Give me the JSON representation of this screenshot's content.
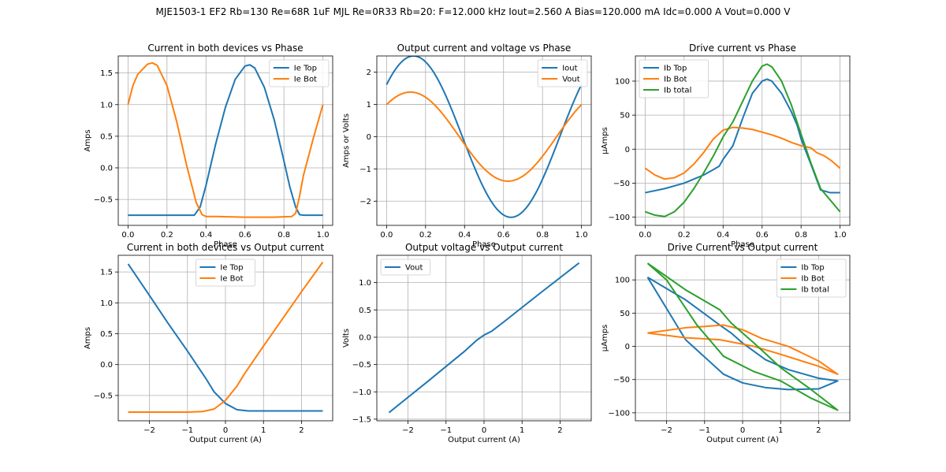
{
  "figure": {
    "suptitle": "MJE1503-1 EF2 Rb=130 Re=68R 1uF MJL Re=0R33 Rb=20: F=12.000 kHz Iout=2.560 A Bias=120.000 mA Idc=0.000 A Vout=0.000 V"
  },
  "colors": {
    "blue": "#1f77b4",
    "orange": "#ff7f0e",
    "green": "#2ca02c",
    "grid": "#b0b0b0"
  },
  "chart_data": [
    {
      "id": "p1",
      "type": "line",
      "title": "Current in both devices vs Phase",
      "xlabel": "Phase",
      "ylabel": "Amps",
      "xlim": [
        -0.05,
        1.05
      ],
      "ylim": [
        -0.91,
        1.77
      ],
      "xticks": [
        0.0,
        0.2,
        0.4,
        0.6,
        0.8,
        1.0
      ],
      "yticks": [
        -0.5,
        0.0,
        0.5,
        1.0,
        1.5
      ],
      "grid": true,
      "legend": "upper right",
      "series": [
        {
          "name": "Ie Top",
          "color": "blue",
          "x": [
            0,
            0.25,
            0.34,
            0.37,
            0.4,
            0.45,
            0.5,
            0.55,
            0.6,
            0.625,
            0.65,
            0.7,
            0.75,
            0.8,
            0.83,
            0.86,
            0.88,
            0.9,
            1.0
          ],
          "y": [
            -0.75,
            -0.75,
            -0.75,
            -0.62,
            -0.28,
            0.38,
            0.96,
            1.4,
            1.61,
            1.63,
            1.58,
            1.27,
            0.76,
            0.11,
            -0.3,
            -0.62,
            -0.74,
            -0.75,
            -0.75
          ]
        },
        {
          "name": "Ie Bot",
          "color": "orange",
          "x": [
            0,
            0.025,
            0.05,
            0.1,
            0.125,
            0.15,
            0.2,
            0.25,
            0.3,
            0.35,
            0.38,
            0.4,
            0.45,
            0.6,
            0.75,
            0.84,
            0.86,
            0.88,
            0.9,
            0.95,
            1.0
          ],
          "y": [
            1.0,
            1.3,
            1.48,
            1.64,
            1.66,
            1.62,
            1.3,
            0.73,
            0.05,
            -0.55,
            -0.74,
            -0.77,
            -0.77,
            -0.78,
            -0.78,
            -0.77,
            -0.72,
            -0.45,
            -0.12,
            0.46,
            1.0
          ]
        }
      ]
    },
    {
      "id": "p2",
      "type": "line",
      "title": "Output current and voltage vs Phase",
      "xlabel": "Phase",
      "ylabel": "Amps or Volts",
      "xlim": [
        -0.05,
        1.05
      ],
      "ylim": [
        -2.75,
        2.5
      ],
      "xticks": [
        0.0,
        0.2,
        0.4,
        0.6,
        0.8,
        1.0
      ],
      "yticks": [
        -2,
        -1,
        0,
        1,
        2
      ],
      "grid": true,
      "legend": "upper right",
      "series": [
        {
          "name": "Iout",
          "color": "blue",
          "fn": "sin",
          "amp": 2.5,
          "offset": 0,
          "shift": 0.7
        },
        {
          "name": "Vout",
          "color": "orange",
          "fn": "sin",
          "amp": 1.38,
          "offset": 0,
          "shift": 0.8
        }
      ]
    },
    {
      "id": "p3",
      "type": "line",
      "title": "Drive current vs Phase",
      "xlabel": "Phase",
      "ylabel": "µAmps",
      "xlim": [
        -0.05,
        1.05
      ],
      "ylim": [
        -112,
        137
      ],
      "xticks": [
        0.0,
        0.2,
        0.4,
        0.6,
        0.8,
        1.0
      ],
      "yticks": [
        -100,
        -50,
        0,
        50,
        100
      ],
      "grid": true,
      "legend": "upper left",
      "series": [
        {
          "name": "Ib Top",
          "color": "blue",
          "x": [
            0,
            0.1,
            0.2,
            0.3,
            0.35,
            0.38,
            0.4,
            0.45,
            0.5,
            0.55,
            0.6,
            0.625,
            0.65,
            0.7,
            0.75,
            0.78,
            0.8,
            0.85,
            0.9,
            0.95,
            1.0
          ],
          "y": [
            -64,
            -58,
            -50,
            -38,
            -30,
            -25,
            -15,
            5,
            45,
            82,
            100,
            103,
            100,
            82,
            55,
            35,
            15,
            -22,
            -60,
            -64,
            -64
          ]
        },
        {
          "name": "Ib Bot",
          "color": "orange",
          "x": [
            0,
            0.05,
            0.1,
            0.15,
            0.2,
            0.25,
            0.3,
            0.35,
            0.4,
            0.45,
            0.5,
            0.55,
            0.6,
            0.65,
            0.7,
            0.75,
            0.8,
            0.85,
            0.88,
            0.92,
            0.96,
            1.0
          ],
          "y": [
            -28,
            -38,
            -44,
            -42,
            -35,
            -22,
            -5,
            15,
            28,
            32,
            31,
            29,
            25,
            21,
            16,
            10,
            5,
            2,
            -5,
            -10,
            -18,
            -28
          ]
        },
        {
          "name": "Ib total",
          "color": "green",
          "x": [
            0,
            0.05,
            0.1,
            0.15,
            0.2,
            0.25,
            0.3,
            0.35,
            0.4,
            0.45,
            0.5,
            0.55,
            0.6,
            0.625,
            0.65,
            0.7,
            0.75,
            0.8,
            0.85,
            0.9,
            0.95,
            1.0
          ],
          "y": [
            -92,
            -97,
            -99,
            -92,
            -78,
            -58,
            -35,
            -10,
            18,
            40,
            70,
            100,
            122,
            125,
            121,
            100,
            65,
            22,
            -20,
            -58,
            -75,
            -92
          ]
        }
      ]
    },
    {
      "id": "p4",
      "type": "line",
      "title": "Current in both devices vs Output current",
      "xlabel": "Output current (A)",
      "ylabel": "Amps",
      "xlim": [
        -2.82,
        2.82
      ],
      "ylim": [
        -0.91,
        1.77
      ],
      "xticks": [
        -2,
        -1,
        0,
        1,
        2
      ],
      "yticks": [
        -0.5,
        0.0,
        0.5,
        1.0,
        1.5
      ],
      "grid": true,
      "legend": "upper center",
      "series": [
        {
          "name": "Ie Top",
          "color": "blue",
          "x": [
            -2.56,
            -2.0,
            -1.5,
            -1.0,
            -0.5,
            -0.3,
            0.0,
            0.3,
            0.6,
            1.0,
            2.0,
            2.56
          ],
          "y": [
            1.63,
            1.12,
            0.66,
            0.22,
            -0.24,
            -0.44,
            -0.63,
            -0.73,
            -0.75,
            -0.75,
            -0.75,
            -0.75
          ]
        },
        {
          "name": "Ie Bot",
          "color": "orange",
          "x": [
            -2.56,
            -2.0,
            -1.0,
            -0.6,
            -0.3,
            0.0,
            0.3,
            0.5,
            1.0,
            1.5,
            2.0,
            2.56
          ],
          "y": [
            -0.77,
            -0.77,
            -0.77,
            -0.76,
            -0.72,
            -0.58,
            -0.35,
            -0.15,
            0.3,
            0.74,
            1.18,
            1.66
          ]
        }
      ]
    },
    {
      "id": "p5",
      "type": "line",
      "title": "Output voltage vs Output current",
      "xlabel": "Output current (A)",
      "ylabel": "Volts",
      "xlim": [
        -2.82,
        2.82
      ],
      "ylim": [
        -1.53,
        1.5
      ],
      "xticks": [
        -2,
        -1,
        0,
        1,
        2
      ],
      "yticks": [
        -1.5,
        -1.0,
        -0.5,
        0.0,
        0.5,
        1.0
      ],
      "grid": true,
      "legend": "upper left",
      "series": [
        {
          "name": "Vout",
          "color": "blue",
          "x": [
            -2.5,
            -1.5,
            -0.5,
            -0.2,
            0.0,
            0.2,
            0.5,
            1.5,
            2.5
          ],
          "y": [
            -1.38,
            -0.82,
            -0.25,
            -0.06,
            0.04,
            0.11,
            0.27,
            0.82,
            1.36
          ]
        }
      ]
    },
    {
      "id": "p6",
      "type": "line",
      "title": "Drive Current vs Output current",
      "xlabel": "Output current (A)",
      "ylabel": "µAmps",
      "xlim": [
        -2.82,
        2.82
      ],
      "ylim": [
        -112,
        137
      ],
      "xticks": [
        -2,
        -1,
        0,
        1,
        2
      ],
      "yticks": [
        -100,
        -50,
        0,
        50,
        100
      ],
      "grid": true,
      "legend": "upper right",
      "series": [
        {
          "name": "Ib Top",
          "color": "blue",
          "x": [
            -2.5,
            -1.5,
            -0.6,
            -0.3,
            0,
            0.6,
            1.2,
            2.0,
            2.5,
            2.0,
            1.2,
            0.6,
            0,
            -0.5,
            -1.5,
            -2.5
          ],
          "y": [
            104,
            70,
            32,
            20,
            5,
            -20,
            -35,
            -48,
            -52,
            -64,
            -65,
            -62,
            -55,
            -42,
            10,
            104
          ]
        },
        {
          "name": "Ib Bot",
          "color": "orange",
          "x": [
            -2.5,
            -1.5,
            -0.5,
            0,
            0.5,
            1.2,
            2.0,
            2.5,
            2.0,
            1.0,
            0.3,
            -0.6,
            -1.5,
            -2.5
          ],
          "y": [
            20,
            28,
            32,
            25,
            12,
            0,
            -22,
            -42,
            -30,
            -12,
            0,
            10,
            13,
            20
          ]
        },
        {
          "name": "Ib total",
          "color": "green",
          "x": [
            -2.5,
            -1.5,
            -0.6,
            -0.3,
            0.3,
            1.0,
            1.8,
            2.5,
            1.8,
            1.0,
            0.3,
            -0.5,
            -1.2,
            -2.0,
            -2.5
          ],
          "y": [
            125,
            85,
            55,
            35,
            5,
            -32,
            -65,
            -96,
            -78,
            -52,
            -38,
            -15,
            32,
            100,
            125
          ]
        }
      ]
    }
  ]
}
